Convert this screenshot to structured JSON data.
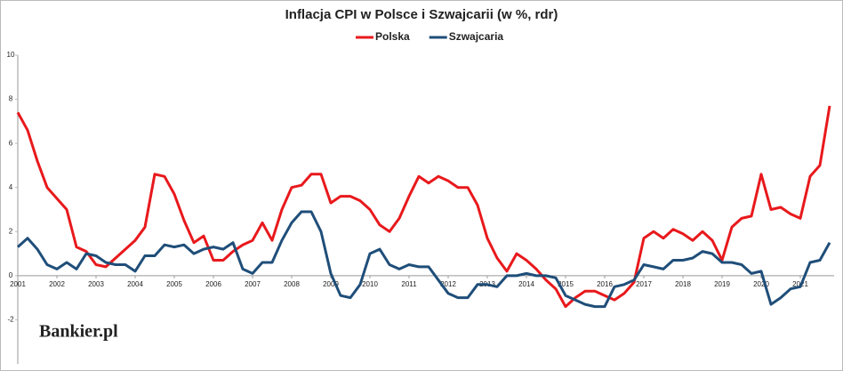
{
  "chart_data": {
    "type": "line",
    "title": "Inflacja CPI w Polsce i Szwajcarii (w %, rdr)",
    "x": [
      2001,
      2001.25,
      2001.5,
      2001.75,
      2002,
      2002.25,
      2002.5,
      2002.75,
      2003,
      2003.25,
      2003.5,
      2003.75,
      2004,
      2004.25,
      2004.5,
      2004.75,
      2005,
      2005.25,
      2005.5,
      2005.75,
      2006,
      2006.25,
      2006.5,
      2006.75,
      2007,
      2007.25,
      2007.5,
      2007.75,
      2008,
      2008.25,
      2008.5,
      2008.75,
      2009,
      2009.25,
      2009.5,
      2009.75,
      2010,
      2010.25,
      2010.5,
      2010.75,
      2011,
      2011.25,
      2011.5,
      2011.75,
      2012,
      2012.25,
      2012.5,
      2012.75,
      2013,
      2013.25,
      2013.5,
      2013.75,
      2014,
      2014.25,
      2014.5,
      2014.75,
      2015,
      2015.25,
      2015.5,
      2015.75,
      2016,
      2016.25,
      2016.5,
      2016.75,
      2017,
      2017.25,
      2017.5,
      2017.75,
      2018,
      2018.25,
      2018.5,
      2018.75,
      2019,
      2019.25,
      2019.5,
      2019.75,
      2020,
      2020.25,
      2020.5,
      2020.75,
      2021,
      2021.25,
      2021.5,
      2021.75
    ],
    "series": [
      {
        "name": "Polska",
        "color": "#e8191c",
        "values": [
          7.4,
          6.6,
          5.2,
          4.0,
          3.5,
          3.0,
          1.3,
          1.1,
          0.5,
          0.4,
          0.8,
          1.2,
          1.6,
          2.2,
          4.6,
          4.5,
          3.7,
          2.5,
          1.5,
          1.8,
          0.7,
          0.7,
          1.1,
          1.4,
          1.6,
          2.4,
          1.6,
          3.0,
          4.0,
          4.1,
          4.6,
          4.6,
          3.3,
          3.6,
          3.6,
          3.4,
          3.0,
          2.3,
          2.0,
          2.6,
          3.6,
          4.5,
          4.2,
          4.5,
          4.3,
          4.0,
          4.0,
          3.2,
          1.7,
          0.8,
          0.2,
          1.0,
          0.7,
          0.3,
          -0.2,
          -0.6,
          -1.4,
          -1.0,
          -0.7,
          -0.7,
          -0.9,
          -1.1,
          -0.8,
          -0.3,
          1.7,
          2.0,
          1.7,
          2.1,
          1.9,
          1.6,
          2.0,
          1.6,
          0.7,
          2.2,
          2.6,
          2.7,
          4.6,
          3.0,
          3.1,
          2.8,
          2.6,
          4.5,
          5.0,
          7.7
        ]
      },
      {
        "name": "Szwajcaria",
        "color": "#1f4e79",
        "values": [
          1.3,
          1.7,
          1.2,
          0.5,
          0.3,
          0.6,
          0.3,
          1.0,
          0.9,
          0.6,
          0.5,
          0.5,
          0.2,
          0.9,
          0.9,
          1.4,
          1.3,
          1.4,
          1.0,
          1.2,
          1.3,
          1.2,
          1.5,
          0.3,
          0.1,
          0.6,
          0.6,
          1.6,
          2.4,
          2.9,
          2.9,
          2.0,
          0.1,
          -0.9,
          -1.0,
          -0.4,
          1.0,
          1.2,
          0.5,
          0.3,
          0.5,
          0.4,
          0.4,
          -0.2,
          -0.8,
          -1.0,
          -1.0,
          -0.4,
          -0.4,
          -0.5,
          0.0,
          0.0,
          0.1,
          0.0,
          0.0,
          -0.1,
          -0.9,
          -1.1,
          -1.3,
          -1.4,
          -1.4,
          -0.5,
          -0.4,
          -0.2,
          0.5,
          0.4,
          0.3,
          0.7,
          0.7,
          0.8,
          1.1,
          1.0,
          0.6,
          0.6,
          0.5,
          0.1,
          0.2,
          -1.3,
          -1.0,
          -0.6,
          -0.5,
          0.6,
          0.7,
          1.5
        ]
      }
    ],
    "xlim": [
      2001,
      2021.75
    ],
    "xticks": [
      2001,
      2002,
      2003,
      2004,
      2005,
      2006,
      2007,
      2008,
      2009,
      2010,
      2011,
      2012,
      2013,
      2014,
      2015,
      2016,
      2017,
      2018,
      2019,
      2020,
      2021
    ],
    "ylim": [
      -4,
      10
    ],
    "yticks": [
      -2,
      0,
      2,
      4,
      6,
      8,
      10
    ],
    "grid": false,
    "legend": "top",
    "logo": "Bankier.pl"
  }
}
